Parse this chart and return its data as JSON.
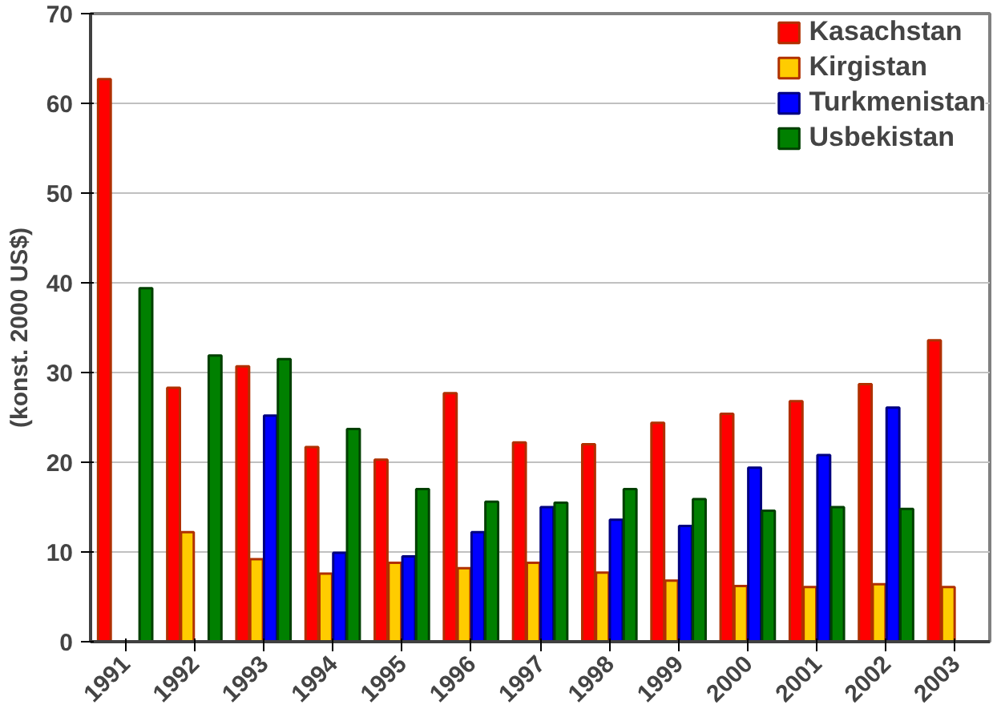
{
  "chart_data": {
    "type": "bar",
    "ylabel": "(konst. 2000 US$)",
    "categories": [
      "1991",
      "1992",
      "1993",
      "1994",
      "1995",
      "1996",
      "1997",
      "1998",
      "1999",
      "2000",
      "2001",
      "2002",
      "2003"
    ],
    "series": [
      {
        "name": "Kasachstan",
        "color": "#ff0000",
        "values": [
          62.7,
          28.3,
          30.7,
          21.7,
          20.3,
          27.7,
          22.2,
          22.0,
          24.4,
          25.4,
          26.8,
          28.7,
          33.6
        ]
      },
      {
        "name": "Kirgistan",
        "color": "#ffcc00",
        "values": [
          null,
          12.2,
          9.2,
          7.6,
          8.8,
          8.2,
          8.8,
          7.7,
          6.8,
          6.2,
          6.1,
          6.4,
          6.1
        ]
      },
      {
        "name": "Turkmenistan",
        "color": "#0000ff",
        "values": [
          null,
          null,
          25.2,
          9.9,
          9.5,
          12.2,
          15.0,
          13.6,
          12.9,
          19.4,
          20.8,
          26.1,
          null
        ]
      },
      {
        "name": "Usbekistan",
        "color": "#008000",
        "values": [
          39.4,
          31.9,
          31.5,
          23.7,
          17.0,
          15.6,
          15.5,
          17.0,
          15.9,
          14.6,
          15.0,
          14.8,
          null
        ]
      }
    ],
    "ylim": [
      0,
      70
    ],
    "yticks": [
      0,
      10,
      20,
      30,
      40,
      50,
      60,
      70
    ],
    "grid": "y",
    "legend": "top right"
  }
}
